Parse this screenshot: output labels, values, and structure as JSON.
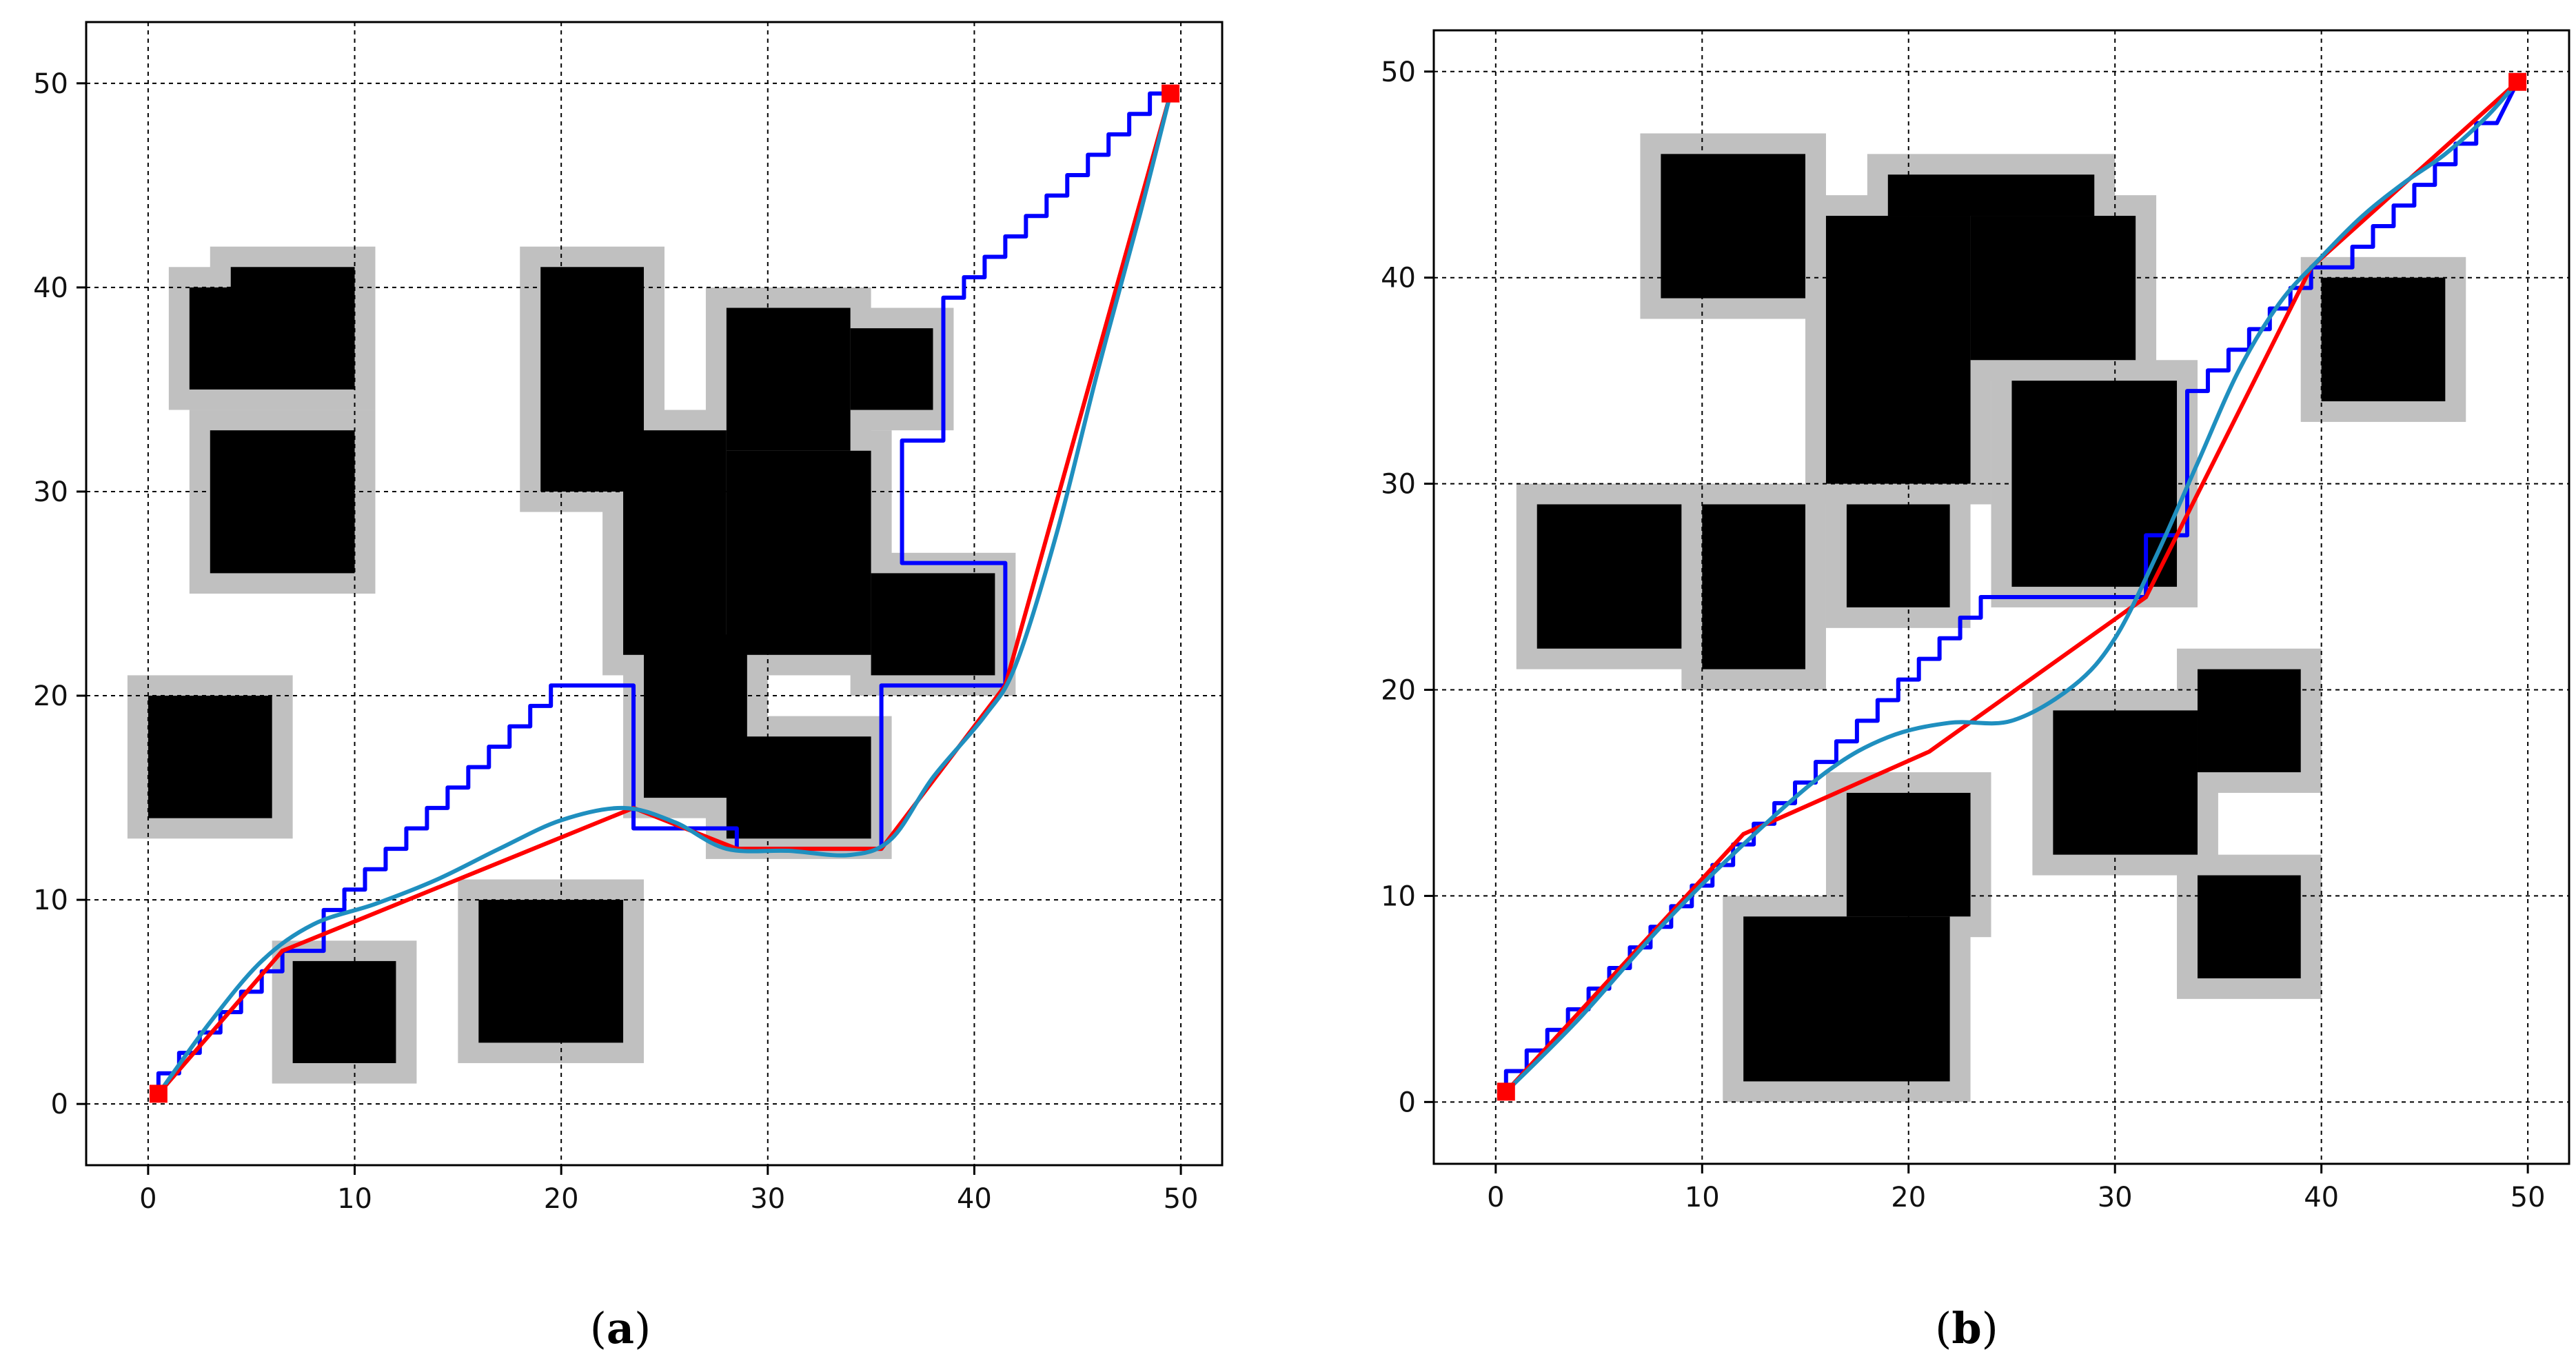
{
  "figure": {
    "captions": [
      {
        "open": "(",
        "letter": "a",
        "close": ")"
      },
      {
        "open": "(",
        "letter": "b",
        "close": ")"
      }
    ]
  },
  "colors": {
    "obstacle": "#000000",
    "inflation": "#c0c0c0",
    "grid_path": "#0000ff",
    "straight_path": "#ff0000",
    "smooth_path": "#1f8fbf",
    "endpoint": "#ff0000"
  },
  "chart_data": [
    {
      "type": "scatter",
      "title": "",
      "xlabel": "",
      "ylabel": "",
      "xlim": [
        -3,
        52
      ],
      "ylim": [
        -3,
        53
      ],
      "xticks": [
        0,
        10,
        20,
        30,
        40,
        50
      ],
      "yticks": [
        0,
        10,
        20,
        30,
        40,
        50
      ],
      "grid": true,
      "start": [
        0.5,
        0.5
      ],
      "goal": [
        49.5,
        49.5
      ],
      "obstacles": [
        [
          2,
          35,
          10,
          40
        ],
        [
          4,
          39.5,
          10,
          41
        ],
        [
          3,
          26,
          10,
          33
        ],
        [
          0,
          14,
          6,
          20
        ],
        [
          7,
          2,
          12,
          7
        ],
        [
          16,
          3,
          23,
          10
        ],
        [
          19,
          30,
          24,
          41
        ],
        [
          23,
          22,
          28,
          33
        ],
        [
          24,
          15,
          29,
          23
        ],
        [
          28,
          13,
          35,
          18
        ],
        [
          28,
          22,
          35,
          32
        ],
        [
          28,
          32,
          34,
          39
        ],
        [
          34,
          34,
          38,
          38
        ],
        [
          35,
          21,
          41,
          26
        ]
      ],
      "series": [
        {
          "name": "",
          "color_key": "grid_path",
          "step": true,
          "points": [
            [
              0.5,
              0.5
            ],
            [
              1.5,
              1.5
            ],
            [
              2.5,
              2.5
            ],
            [
              3.5,
              3.5
            ],
            [
              4.5,
              4.5
            ],
            [
              5.5,
              5.5
            ],
            [
              6.5,
              6.5
            ],
            [
              6.5,
              7.5
            ],
            [
              8.5,
              7.5
            ],
            [
              8.5,
              8.5
            ],
            [
              9.5,
              9.5
            ],
            [
              10.5,
              10.5
            ],
            [
              11.5,
              11.5
            ],
            [
              12.5,
              12.5
            ],
            [
              13.5,
              13.5
            ],
            [
              14.5,
              14.5
            ],
            [
              15.5,
              15.5
            ],
            [
              16.5,
              16.5
            ],
            [
              17.5,
              17.5
            ],
            [
              18.5,
              18.5
            ],
            [
              19.5,
              19.5
            ],
            [
              20.5,
              20.5
            ],
            [
              23.5,
              20.5
            ],
            [
              23.5,
              13.5
            ],
            [
              28.5,
              13.5
            ],
            [
              28.5,
              12.5
            ],
            [
              35.5,
              12.5
            ],
            [
              35.5,
              20.5
            ],
            [
              41.5,
              20.5
            ],
            [
              41.5,
              26.5
            ],
            [
              36.5,
              26.5
            ],
            [
              36.5,
              32.5
            ],
            [
              38.5,
              32.5
            ],
            [
              38.5,
              38.5
            ],
            [
              39.5,
              39.5
            ],
            [
              40.5,
              40.5
            ],
            [
              41.5,
              41.5
            ],
            [
              42.5,
              42.5
            ],
            [
              43.5,
              43.5
            ],
            [
              44.5,
              44.5
            ],
            [
              45.5,
              45.5
            ],
            [
              46.5,
              46.5
            ],
            [
              47.5,
              47.5
            ],
            [
              48.5,
              48.5
            ],
            [
              49.5,
              49.5
            ]
          ]
        },
        {
          "name": "",
          "color_key": "straight_path",
          "step": false,
          "points": [
            [
              0.5,
              0.5
            ],
            [
              6.5,
              7.5
            ],
            [
              23.5,
              14.5
            ],
            [
              28.5,
              12.5
            ],
            [
              35.5,
              12.5
            ],
            [
              41.5,
              20.5
            ],
            [
              49.5,
              49.5
            ]
          ]
        },
        {
          "name": "",
          "color_key": "smooth_path",
          "step": false,
          "points": [
            [
              0.5,
              0.5
            ],
            [
              3,
              4
            ],
            [
              5.5,
              7
            ],
            [
              8,
              8.8
            ],
            [
              11,
              9.8
            ],
            [
              14,
              11
            ],
            [
              17,
              12.5
            ],
            [
              20,
              13.9
            ],
            [
              23,
              14.5
            ],
            [
              25.5,
              13.8
            ],
            [
              28,
              12.5
            ],
            [
              31,
              12.4
            ],
            [
              34,
              12.2
            ],
            [
              36,
              13
            ],
            [
              38,
              16
            ],
            [
              40.5,
              19
            ],
            [
              42,
              21.5
            ],
            [
              44,
              28
            ],
            [
              46,
              36
            ],
            [
              48,
              43.5
            ],
            [
              49.5,
              49.5
            ]
          ]
        }
      ]
    },
    {
      "type": "scatter",
      "title": "",
      "xlabel": "",
      "ylabel": "",
      "xlim": [
        -3,
        52
      ],
      "ylim": [
        -3,
        52
      ],
      "xticks": [
        0,
        10,
        20,
        30,
        40,
        50
      ],
      "yticks": [
        0,
        10,
        20,
        30,
        40,
        50
      ],
      "grid": true,
      "start": [
        0.5,
        0.5
      ],
      "goal": [
        49.5,
        49.5
      ],
      "obstacles": [
        [
          8,
          39,
          15,
          46
        ],
        [
          16,
          30,
          23,
          43
        ],
        [
          19,
          43,
          29,
          45
        ],
        [
          23,
          36,
          31,
          43
        ],
        [
          25,
          25,
          33,
          35
        ],
        [
          40,
          34,
          46,
          40
        ],
        [
          2,
          22,
          9,
          29
        ],
        [
          10,
          21,
          15,
          29
        ],
        [
          17,
          24,
          22,
          29
        ],
        [
          27,
          12,
          34,
          19
        ],
        [
          34,
          16,
          39,
          21
        ],
        [
          34,
          6,
          39,
          11
        ],
        [
          17,
          9,
          23,
          15
        ],
        [
          12,
          1,
          22,
          9
        ]
      ],
      "series": [
        {
          "name": "",
          "color_key": "grid_path",
          "step": true,
          "points": [
            [
              0.5,
              0.5
            ],
            [
              1.5,
              1.5
            ],
            [
              2.5,
              2.5
            ],
            [
              3.5,
              3.5
            ],
            [
              4.5,
              4.5
            ],
            [
              5.5,
              5.5
            ],
            [
              6.5,
              6.5
            ],
            [
              7.5,
              7.5
            ],
            [
              8.5,
              8.5
            ],
            [
              9.5,
              9.5
            ],
            [
              10.5,
              10.5
            ],
            [
              11.5,
              11.5
            ],
            [
              12.5,
              12.5
            ],
            [
              13.5,
              13.5
            ],
            [
              14.5,
              14.5
            ],
            [
              15.5,
              15.5
            ],
            [
              16.5,
              16.5
            ],
            [
              17.5,
              17.5
            ],
            [
              18.5,
              18.5
            ],
            [
              19.5,
              19.5
            ],
            [
              20.5,
              20.5
            ],
            [
              21.5,
              21.5
            ],
            [
              22.5,
              22.5
            ],
            [
              23.5,
              23.5
            ],
            [
              24.5,
              24.5
            ],
            [
              31.5,
              24.5
            ],
            [
              31.5,
              27.5
            ],
            [
              33.5,
              27.5
            ],
            [
              33.5,
              33.5
            ],
            [
              34.5,
              34.5
            ],
            [
              35.5,
              35.5
            ],
            [
              36.5,
              36.5
            ],
            [
              37.5,
              37.5
            ],
            [
              38.5,
              38.5
            ],
            [
              39.5,
              39.5
            ],
            [
              39.5,
              40.5
            ],
            [
              41.5,
              40.5
            ],
            [
              42.5,
              41.5
            ],
            [
              43.5,
              42.5
            ],
            [
              44.5,
              43.5
            ],
            [
              45.5,
              44.5
            ],
            [
              46.5,
              45.5
            ],
            [
              47.5,
              46.5
            ],
            [
              48.5,
              47.5
            ],
            [
              49.5,
              49.5
            ]
          ]
        },
        {
          "name": "",
          "color_key": "straight_path",
          "step": false,
          "points": [
            [
              0.5,
              0.5
            ],
            [
              12,
              13
            ],
            [
              21,
              17
            ],
            [
              31.5,
              24.5
            ],
            [
              39.5,
              40.5
            ],
            [
              49.5,
              49.5
            ]
          ]
        },
        {
          "name": "",
          "color_key": "smooth_path",
          "step": false,
          "points": [
            [
              0.5,
              0.5
            ],
            [
              4,
              4
            ],
            [
              8,
              8.5
            ],
            [
              12,
              12.5
            ],
            [
              16,
              16
            ],
            [
              19,
              17.7
            ],
            [
              22,
              18.4
            ],
            [
              25,
              18.5
            ],
            [
              28,
              20.2
            ],
            [
              30,
              22.5
            ],
            [
              32,
              26.5
            ],
            [
              34,
              31
            ],
            [
              36,
              35.5
            ],
            [
              38,
              38.8
            ],
            [
              40,
              41
            ],
            [
              42,
              43
            ],
            [
              44,
              44.6
            ],
            [
              46,
              46
            ],
            [
              48,
              47.8
            ],
            [
              49.5,
              49.5
            ]
          ]
        }
      ]
    }
  ]
}
